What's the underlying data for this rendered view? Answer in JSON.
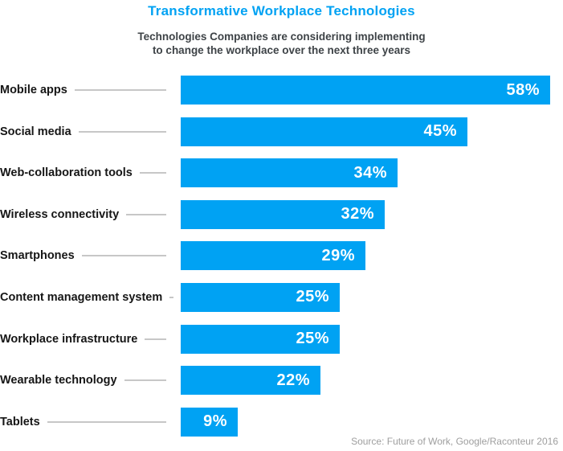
{
  "header": {
    "title": "Transformative Workplace Technologies",
    "subtitle_lines": {
      "0": "Technologies Companies are considering implementing",
      "1": "to change the workplace over the next three years"
    }
  },
  "chart_data": {
    "type": "bar",
    "orientation": "horizontal",
    "title": "Transformative Workplace Technologies",
    "subtitle": "Technologies Companies are considering implementing to change the workplace over the next three years",
    "categories": [
      "Mobile apps",
      "Social media",
      "Web-collaboration tools",
      "Wireless connectivity",
      "Smartphones",
      "Content management system",
      "Workplace infrastructure",
      "Wearable technology",
      "Tablets"
    ],
    "values": [
      58,
      45,
      34,
      32,
      29,
      25,
      25,
      22,
      9
    ],
    "value_suffix": "%",
    "value_labels": [
      "58%",
      "45%",
      "34%",
      "32%",
      "29%",
      "25%",
      "25%",
      "22%",
      "9%"
    ],
    "xlabel": "",
    "ylabel": "",
    "xlim": [
      0,
      60
    ],
    "grid": false,
    "legend": false,
    "data_labels_position": "inside-end"
  },
  "footer": {
    "source": "Source: Future of Work, Google/Raconteur 2016"
  },
  "colors": {
    "accent": "#00a2f3",
    "title": "#00a2f3",
    "subtitle": "#3e4347",
    "category_label": "#161616",
    "leader_line": "#c7c7c7",
    "value_label": "#ffffff",
    "source_text": "#9e9e9e"
  }
}
